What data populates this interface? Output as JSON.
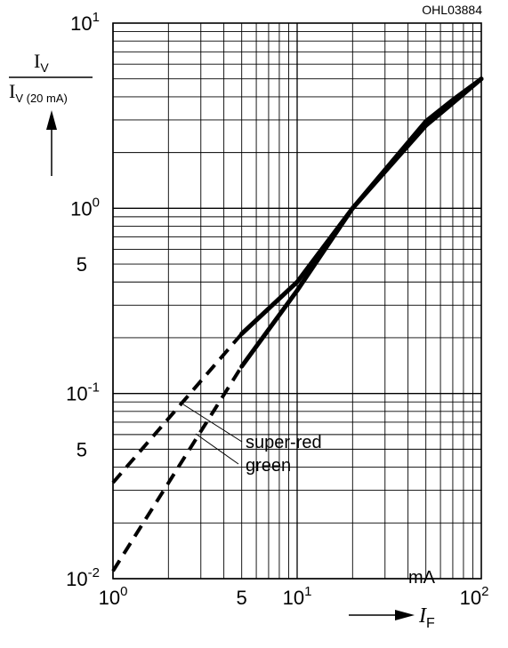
{
  "figure_id": "OHL03884",
  "chart_data": {
    "type": "line",
    "xscale": "log",
    "yscale": "log",
    "xlim": [
      1,
      100
    ],
    "ylim": [
      0.01,
      10
    ],
    "grid": true,
    "ylabel": {
      "numerator": "I",
      "numerator_sub": "V",
      "denominator": "I",
      "denominator_sub": "V (20 mA)"
    },
    "xlabel": {
      "symbol": "I",
      "sub": "F",
      "unit": "mA"
    },
    "x_ticks": [
      {
        "value": 1,
        "base": "10",
        "exp": "0"
      },
      {
        "value": 5,
        "base": "5",
        "exp": ""
      },
      {
        "value": 10,
        "base": "10",
        "exp": "1"
      },
      {
        "value": 100,
        "base": "10",
        "exp": "2"
      }
    ],
    "y_ticks": [
      {
        "value": 10,
        "base": "10",
        "exp": "1"
      },
      {
        "value": 1,
        "base": "10",
        "exp": "0"
      },
      {
        "value": 0.5,
        "base": "5",
        "exp": ""
      },
      {
        "value": 0.1,
        "base": "10",
        "exp": "-1"
      },
      {
        "value": 0.05,
        "base": "5",
        "exp": ""
      },
      {
        "value": 0.01,
        "base": "10",
        "exp": "-2"
      }
    ],
    "series": [
      {
        "name": "super-red",
        "dashed": {
          "x": [
            1,
            5
          ],
          "y": [
            0.033,
            0.21
          ]
        },
        "solid": {
          "x": [
            5,
            10,
            20,
            50,
            70,
            100
          ],
          "y": [
            0.21,
            0.4,
            1.0,
            2.8,
            3.7,
            5.0
          ]
        }
      },
      {
        "name": "green",
        "dashed": {
          "x": [
            1,
            5
          ],
          "y": [
            0.011,
            0.14
          ]
        },
        "solid": {
          "x": [
            5,
            10,
            20,
            50,
            70,
            100
          ],
          "y": [
            0.14,
            0.36,
            1.0,
            2.95,
            3.85,
            5.0
          ]
        }
      }
    ]
  }
}
